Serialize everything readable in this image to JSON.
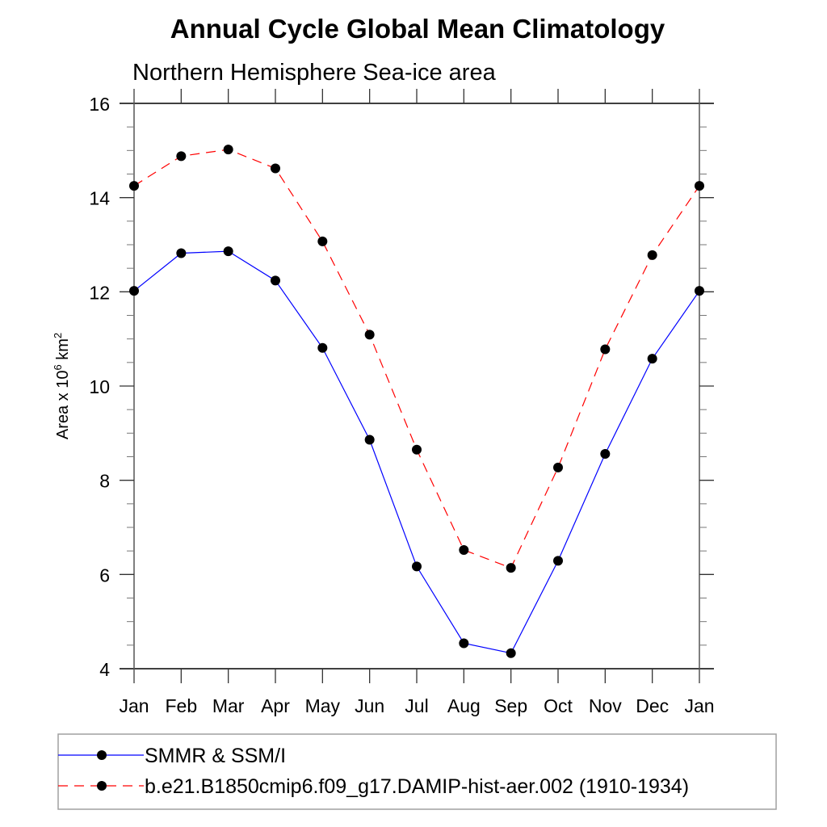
{
  "chart_data": {
    "type": "line",
    "title": "Annual Cycle Global Mean Climatology",
    "subtitle": "Northern Hemisphere Sea-ice area",
    "xlabel": "",
    "ylabel": "Area x 10",
    "ylabel_exp": "6",
    "ylabel_unit": " km",
    "ylabel_unit_exp": "2",
    "categories": [
      "Jan",
      "Feb",
      "Mar",
      "Apr",
      "May",
      "Jun",
      "Jul",
      "Aug",
      "Sep",
      "Oct",
      "Nov",
      "Dec",
      "Jan"
    ],
    "ylim": [
      4,
      16
    ],
    "yticks": [
      4,
      6,
      8,
      10,
      12,
      14,
      16
    ],
    "yminor_step": 0.5,
    "grid": false,
    "legend_position": "bottom",
    "series": [
      {
        "name": "SMMR & SSM/I",
        "color": "#0000ff",
        "style": "solid",
        "marker": "filled-circle",
        "values": [
          12.02,
          12.82,
          12.86,
          12.24,
          10.81,
          8.86,
          6.17,
          4.54,
          4.33,
          6.29,
          8.56,
          10.58,
          12.02
        ]
      },
      {
        "name": "b.e21.B1850cmip6.f09_g17.DAMIP-hist-aer.002 (1910-1934)",
        "color": "#ff0000",
        "style": "dashed",
        "marker": "filled-circle",
        "values": [
          14.25,
          14.88,
          15.02,
          14.62,
          13.07,
          11.09,
          8.65,
          6.52,
          6.14,
          8.27,
          10.78,
          12.78,
          14.25
        ]
      }
    ]
  }
}
